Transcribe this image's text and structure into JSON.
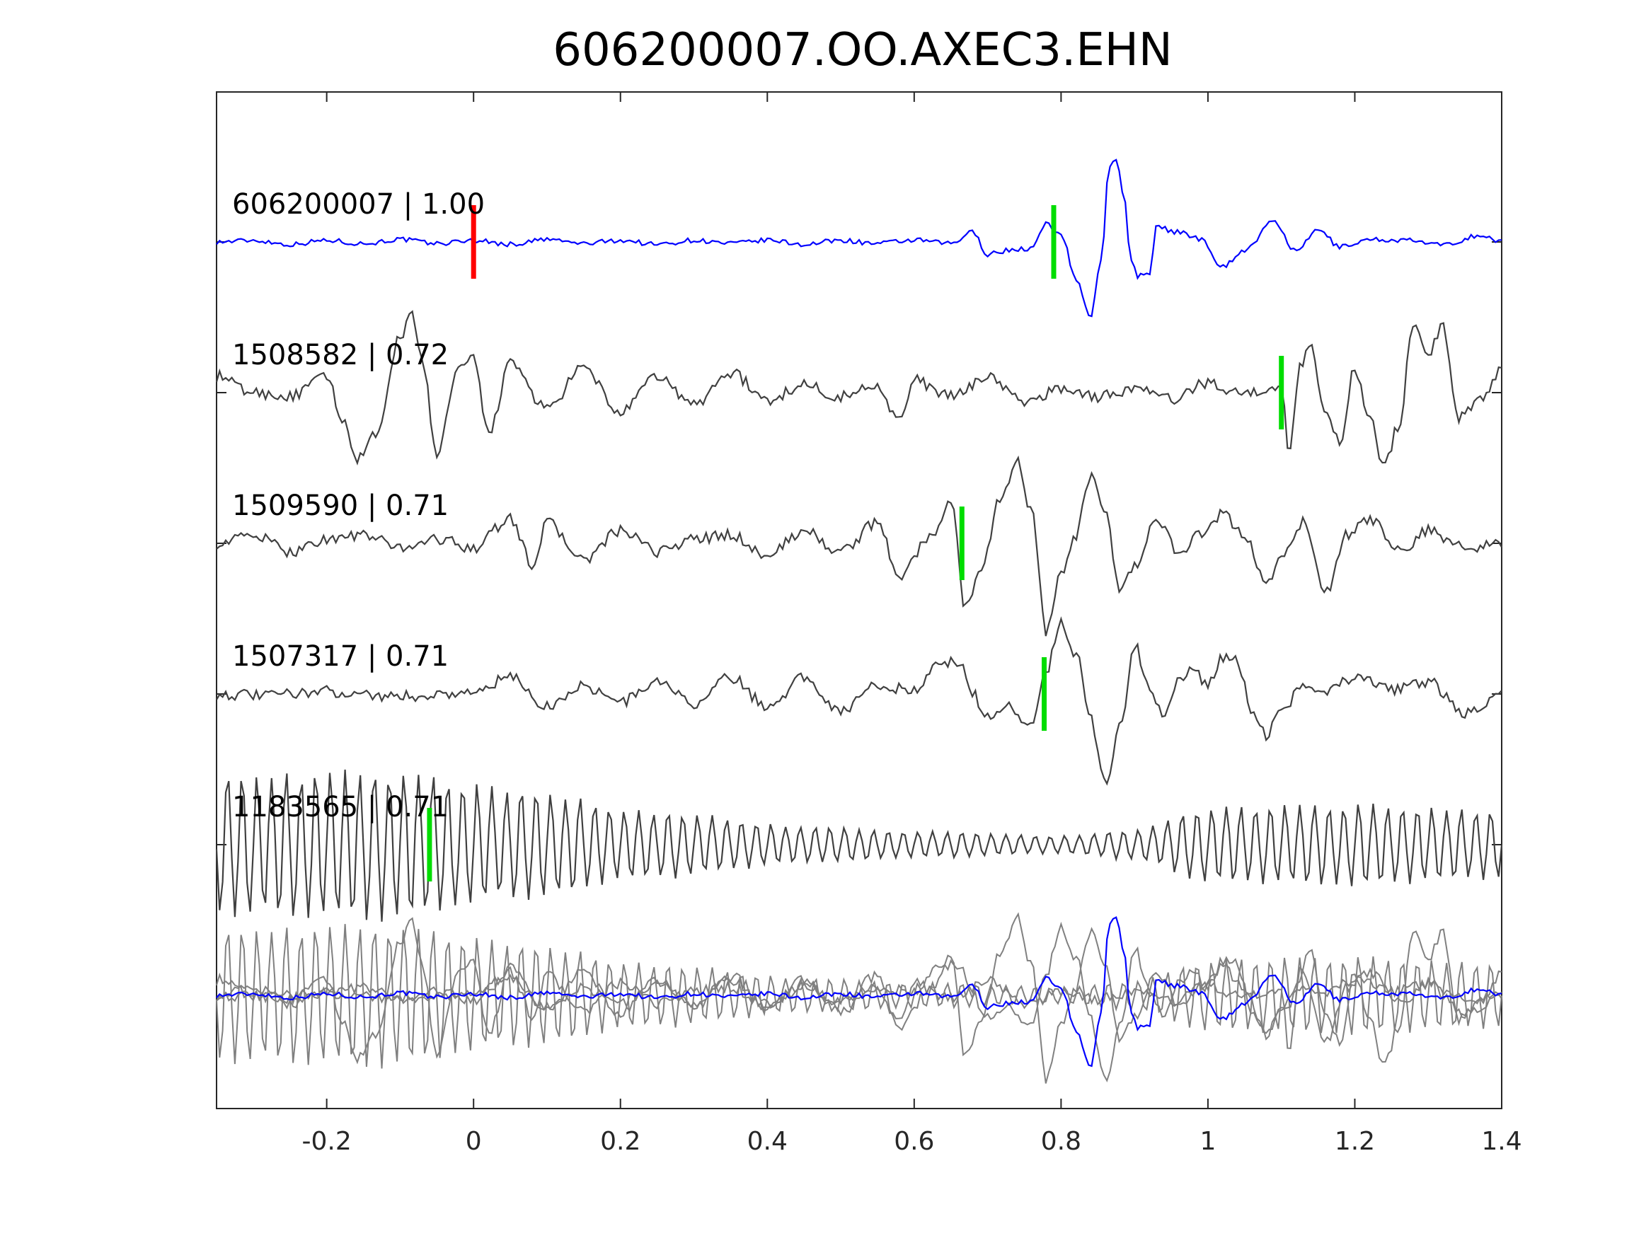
{
  "chart_data": {
    "type": "line",
    "title": "606200007.OO.AXEC3.EHN",
    "xlabel": "",
    "ylabel": "",
    "xlim": [
      -0.35,
      1.4
    ],
    "xticks": [
      -0.2,
      0,
      0.2,
      0.4,
      0.6,
      0.8,
      1,
      1.2,
      1.4
    ],
    "xtick_labels": [
      "-0.2",
      "0",
      "0.2",
      "0.4",
      "0.6",
      "0.8",
      "1",
      "1.2",
      "1.4"
    ],
    "grid": false,
    "colors": {
      "template": "#0000ff",
      "match": "#404040",
      "overlay": "#808080",
      "template_pick": "#ff0000",
      "match_pick": "#00dd00",
      "axes": "#262626"
    },
    "series": [
      {
        "id": "606200007",
        "label": "606200007 | 1.00",
        "correlation": 1.0,
        "role": "template",
        "pick_time": 0.0,
        "s_pick_time": 0.79,
        "waveform": [
          [
            -0.35,
            0
          ],
          [
            -0.3,
            0.02
          ],
          [
            -0.25,
            -0.03
          ],
          [
            -0.2,
            0.02
          ],
          [
            -0.15,
            -0.02
          ],
          [
            -0.1,
            0.03
          ],
          [
            -0.05,
            -0.02
          ],
          [
            0,
            0.02
          ],
          [
            0.05,
            -0.03
          ],
          [
            0.1,
            0.03
          ],
          [
            0.15,
            -0.02
          ],
          [
            0.2,
            0.02
          ],
          [
            0.25,
            -0.03
          ],
          [
            0.3,
            0.02
          ],
          [
            0.35,
            -0.02
          ],
          [
            0.4,
            0.02
          ],
          [
            0.45,
            -0.03
          ],
          [
            0.5,
            0.02
          ],
          [
            0.55,
            -0.02
          ],
          [
            0.6,
            0.02
          ],
          [
            0.65,
            -0.02
          ],
          [
            0.68,
            0.12
          ],
          [
            0.7,
            -0.15
          ],
          [
            0.73,
            -0.1
          ],
          [
            0.76,
            -0.08
          ],
          [
            0.78,
            0.22
          ],
          [
            0.8,
            0.1
          ],
          [
            0.82,
            -0.45
          ],
          [
            0.84,
            -0.92
          ],
          [
            0.855,
            -0.2
          ],
          [
            0.865,
            0.9
          ],
          [
            0.875,
            1.0
          ],
          [
            0.885,
            0.6
          ],
          [
            0.895,
            -0.2
          ],
          [
            0.905,
            -0.42
          ],
          [
            0.92,
            -0.38
          ],
          [
            0.93,
            0.18
          ],
          [
            0.96,
            0.12
          ],
          [
            0.99,
            0.04
          ],
          [
            1.02,
            -0.3
          ],
          [
            1.05,
            -0.1
          ],
          [
            1.09,
            0.25
          ],
          [
            1.12,
            -0.12
          ],
          [
            1.15,
            0.15
          ],
          [
            1.18,
            -0.06
          ],
          [
            1.22,
            0.03
          ],
          [
            1.27,
            0.02
          ],
          [
            1.32,
            -0.04
          ],
          [
            1.37,
            0.08
          ],
          [
            1.4,
            0
          ]
        ]
      },
      {
        "id": "1508582",
        "label": "1508582 | 0.72",
        "correlation": 0.72,
        "role": "match",
        "pick_time": 1.1,
        "waveform": [
          [
            -0.35,
            0.2
          ],
          [
            -0.3,
            0
          ],
          [
            -0.25,
            -0.05
          ],
          [
            -0.2,
            0.2
          ],
          [
            -0.18,
            -0.3
          ],
          [
            -0.16,
            -0.8
          ],
          [
            -0.13,
            -0.5
          ],
          [
            -0.1,
            0.7
          ],
          [
            -0.085,
            0.95
          ],
          [
            -0.07,
            0.4
          ],
          [
            -0.05,
            -0.75
          ],
          [
            -0.02,
            0.3
          ],
          [
            0,
            0.4
          ],
          [
            0.02,
            -0.5
          ],
          [
            0.05,
            0.35
          ],
          [
            0.1,
            -0.2
          ],
          [
            0.15,
            0.3
          ],
          [
            0.2,
            -0.25
          ],
          [
            0.25,
            0.2
          ],
          [
            0.3,
            -0.15
          ],
          [
            0.35,
            0.25
          ],
          [
            0.4,
            -0.1
          ],
          [
            0.45,
            0.1
          ],
          [
            0.5,
            -0.05
          ],
          [
            0.55,
            0.1
          ],
          [
            0.58,
            -0.35
          ],
          [
            0.6,
            0.15
          ],
          [
            0.65,
            -0.05
          ],
          [
            0.7,
            0.2
          ],
          [
            0.75,
            -0.12
          ],
          [
            0.8,
            0.05
          ],
          [
            0.85,
            -0.05
          ],
          [
            0.9,
            0.05
          ],
          [
            0.95,
            -0.08
          ],
          [
            1.0,
            0.12
          ],
          [
            1.05,
            -0.02
          ],
          [
            1.1,
            0.1
          ],
          [
            1.11,
            -0.8
          ],
          [
            1.125,
            0.3
          ],
          [
            1.14,
            0.6
          ],
          [
            1.16,
            -0.25
          ],
          [
            1.18,
            -0.6
          ],
          [
            1.2,
            0.3
          ],
          [
            1.22,
            -0.3
          ],
          [
            1.24,
            -0.9
          ],
          [
            1.26,
            -0.4
          ],
          [
            1.28,
            0.85
          ],
          [
            1.3,
            0.5
          ],
          [
            1.32,
            0.8
          ],
          [
            1.34,
            -0.3
          ],
          [
            1.37,
            -0.1
          ],
          [
            1.4,
            0.3
          ]
        ]
      },
      {
        "id": "1509590",
        "label": "1509590 | 0.71",
        "correlation": 0.71,
        "role": "match",
        "pick_time": 0.665,
        "waveform": [
          [
            -0.35,
            0
          ],
          [
            -0.3,
            0.1
          ],
          [
            -0.25,
            -0.1
          ],
          [
            -0.2,
            0.05
          ],
          [
            -0.15,
            0.1
          ],
          [
            -0.1,
            -0.05
          ],
          [
            -0.05,
            0.05
          ],
          [
            0,
            -0.05
          ],
          [
            0.05,
            0.3
          ],
          [
            0.08,
            -0.25
          ],
          [
            0.1,
            0.25
          ],
          [
            0.15,
            -0.2
          ],
          [
            0.2,
            0.15
          ],
          [
            0.25,
            -0.1
          ],
          [
            0.3,
            0.05
          ],
          [
            0.35,
            0.1
          ],
          [
            0.4,
            -0.15
          ],
          [
            0.45,
            0.15
          ],
          [
            0.5,
            -0.1
          ],
          [
            0.55,
            0.25
          ],
          [
            0.58,
            -0.4
          ],
          [
            0.62,
            0.05
          ],
          [
            0.65,
            0.5
          ],
          [
            0.67,
            -0.8
          ],
          [
            0.69,
            -0.3
          ],
          [
            0.72,
            0.6
          ],
          [
            0.74,
            1.0
          ],
          [
            0.76,
            0.4
          ],
          [
            0.78,
            -1.1
          ],
          [
            0.8,
            -0.4
          ],
          [
            0.82,
            0.1
          ],
          [
            0.84,
            0.8
          ],
          [
            0.86,
            0.4
          ],
          [
            0.88,
            -0.6
          ],
          [
            0.9,
            -0.3
          ],
          [
            0.93,
            0.3
          ],
          [
            0.96,
            -0.1
          ],
          [
            0.99,
            0.1
          ],
          [
            1.02,
            0.35
          ],
          [
            1.05,
            0.1
          ],
          [
            1.08,
            -0.5
          ],
          [
            1.1,
            -0.15
          ],
          [
            1.13,
            0.25
          ],
          [
            1.16,
            -0.6
          ],
          [
            1.19,
            0.1
          ],
          [
            1.22,
            0.3
          ],
          [
            1.26,
            -0.1
          ],
          [
            1.3,
            0.15
          ],
          [
            1.35,
            -0.05
          ],
          [
            1.4,
            0
          ]
        ]
      },
      {
        "id": "1507317",
        "label": "1507317 | 0.71",
        "correlation": 0.71,
        "role": "match",
        "pick_time": 0.777,
        "waveform": [
          [
            -0.35,
            0
          ],
          [
            -0.3,
            -0.02
          ],
          [
            -0.2,
            0.03
          ],
          [
            -0.1,
            -0.03
          ],
          [
            0,
            0.02
          ],
          [
            0.05,
            0.2
          ],
          [
            0.1,
            -0.15
          ],
          [
            0.15,
            0.1
          ],
          [
            0.2,
            -0.1
          ],
          [
            0.25,
            0.15
          ],
          [
            0.3,
            -0.12
          ],
          [
            0.35,
            0.2
          ],
          [
            0.4,
            -0.15
          ],
          [
            0.45,
            0.2
          ],
          [
            0.5,
            -0.2
          ],
          [
            0.55,
            0.1
          ],
          [
            0.6,
            0.05
          ],
          [
            0.63,
            0.35
          ],
          [
            0.66,
            0.4
          ],
          [
            0.68,
            0
          ],
          [
            0.7,
            -0.3
          ],
          [
            0.73,
            -0.15
          ],
          [
            0.76,
            -0.4
          ],
          [
            0.78,
            0.3
          ],
          [
            0.8,
            0.9
          ],
          [
            0.82,
            0.5
          ],
          [
            0.84,
            -0.3
          ],
          [
            0.86,
            -1.1
          ],
          [
            0.88,
            -0.4
          ],
          [
            0.9,
            0.6
          ],
          [
            0.92,
            0.1
          ],
          [
            0.94,
            -0.3
          ],
          [
            0.96,
            0.2
          ],
          [
            0.98,
            0.3
          ],
          [
            1.0,
            0.1
          ],
          [
            1.02,
            0.45
          ],
          [
            1.04,
            0.4
          ],
          [
            1.06,
            -0.2
          ],
          [
            1.08,
            -0.5
          ],
          [
            1.1,
            -0.2
          ],
          [
            1.13,
            0.1
          ],
          [
            1.16,
            0.05
          ],
          [
            1.2,
            0.2
          ],
          [
            1.25,
            0.05
          ],
          [
            1.3,
            0.15
          ],
          [
            1.35,
            -0.25
          ],
          [
            1.4,
            0
          ]
        ]
      },
      {
        "id": "1183565",
        "label": "1183565 | 0.71",
        "correlation": 0.71,
        "role": "match",
        "pick_time": -0.06,
        "waveform_profile": {
          "frequency_hz": 50,
          "envelope": [
            [
              -0.35,
              0.95
            ],
            [
              -0.1,
              1.0
            ],
            [
              0.05,
              0.75
            ],
            [
              0.25,
              0.45
            ],
            [
              0.45,
              0.25
            ],
            [
              0.6,
              0.18
            ],
            [
              0.8,
              0.12
            ],
            [
              0.9,
              0.2
            ],
            [
              1.0,
              0.5
            ],
            [
              1.2,
              0.55
            ],
            [
              1.4,
              0.45
            ]
          ]
        }
      }
    ],
    "overlay": {
      "description_visible": false,
      "series_refs": [
        "606200007",
        "1508582",
        "1509590",
        "1507317",
        "1183565"
      ]
    }
  }
}
